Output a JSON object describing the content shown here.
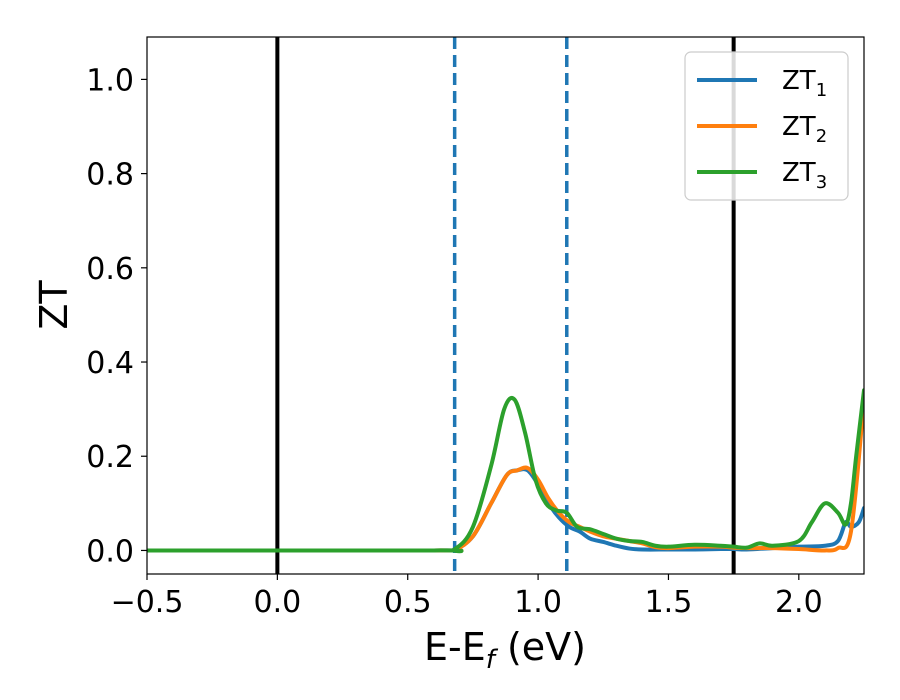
{
  "chart_data": {
    "type": "line",
    "xlabel": {
      "main": "E-E",
      "sub": "f",
      "tail": " (eV)"
    },
    "ylabel": "ZT",
    "xlim": [
      -0.5,
      2.25
    ],
    "ylim": [
      -0.05,
      1.09
    ],
    "xticks": [
      -0.5,
      0.0,
      0.5,
      1.0,
      1.5,
      2.0
    ],
    "xtick_labels": [
      "−0.5",
      "0.0",
      "0.5",
      "1.0",
      "1.5",
      "2.0"
    ],
    "yticks": [
      0.0,
      0.2,
      0.4,
      0.6,
      0.8,
      1.0
    ],
    "ytick_labels": [
      "0.0",
      "0.2",
      "0.4",
      "0.6",
      "0.8",
      "1.0"
    ],
    "grid": false,
    "legend_position": "top-right",
    "vlines": [
      {
        "x": 0.0,
        "style": "solid",
        "color": "#000000"
      },
      {
        "x": 0.68,
        "style": "dashed",
        "color": "#1f77b4"
      },
      {
        "x": 1.11,
        "style": "dashed",
        "color": "#1f77b4"
      },
      {
        "x": 1.75,
        "style": "solid",
        "color": "#000000"
      }
    ],
    "series": [
      {
        "name": "ZT",
        "sub": "1",
        "color": "#1f77b4",
        "x": [
          -0.5,
          0.6,
          0.68,
          0.75,
          0.82,
          0.88,
          0.92,
          0.96,
          1.0,
          1.04,
          1.08,
          1.12,
          1.16,
          1.2,
          1.25,
          1.3,
          1.35,
          1.4,
          1.5,
          1.6,
          1.7,
          1.75,
          1.8,
          1.9,
          2.0,
          2.1,
          2.15,
          2.18,
          2.2,
          2.23,
          2.25
        ],
        "y": [
          0.0,
          0.0,
          0.003,
          0.03,
          0.1,
          0.16,
          0.17,
          0.17,
          0.14,
          0.1,
          0.07,
          0.05,
          0.04,
          0.025,
          0.018,
          0.01,
          0.004,
          0.002,
          0.002,
          0.002,
          0.003,
          0.003,
          0.002,
          0.005,
          0.008,
          0.01,
          0.02,
          0.06,
          0.05,
          0.06,
          0.09
        ]
      },
      {
        "name": "ZT",
        "sub": "2",
        "color": "#ff7f0e",
        "x": [
          -0.5,
          0.6,
          0.68,
          0.75,
          0.82,
          0.88,
          0.92,
          0.96,
          1.0,
          1.04,
          1.08,
          1.12,
          1.16,
          1.2,
          1.25,
          1.3,
          1.35,
          1.4,
          1.45,
          1.5,
          1.6,
          1.7,
          1.75,
          1.8,
          1.9,
          2.0,
          2.1,
          2.15,
          2.2,
          2.25
        ],
        "y": [
          0.0,
          0.0,
          0.002,
          0.03,
          0.1,
          0.16,
          0.17,
          0.175,
          0.15,
          0.11,
          0.08,
          0.06,
          0.05,
          0.04,
          0.03,
          0.025,
          0.02,
          0.015,
          0.007,
          0.005,
          0.008,
          0.008,
          0.006,
          0.005,
          0.005,
          0.003,
          0.0,
          0.005,
          0.04,
          0.32
        ]
      },
      {
        "name": "ZT",
        "sub": "3",
        "color": "#2ca02c",
        "x": [
          -0.5,
          0.6,
          0.68,
          0.75,
          0.82,
          0.87,
          0.91,
          0.95,
          0.99,
          1.03,
          1.07,
          1.11,
          1.15,
          1.2,
          1.25,
          1.3,
          1.35,
          1.4,
          1.45,
          1.5,
          1.6,
          1.7,
          1.75,
          1.8,
          1.85,
          1.9,
          2.0,
          2.05,
          2.1,
          2.15,
          2.18,
          2.2,
          2.22,
          2.25
        ],
        "y": [
          0.0,
          0.0,
          0.003,
          0.05,
          0.18,
          0.3,
          0.32,
          0.25,
          0.15,
          0.1,
          0.085,
          0.08,
          0.05,
          0.045,
          0.035,
          0.025,
          0.02,
          0.018,
          0.01,
          0.008,
          0.012,
          0.01,
          0.008,
          0.006,
          0.015,
          0.01,
          0.02,
          0.06,
          0.1,
          0.08,
          0.055,
          0.1,
          0.2,
          0.34
        ]
      }
    ]
  }
}
